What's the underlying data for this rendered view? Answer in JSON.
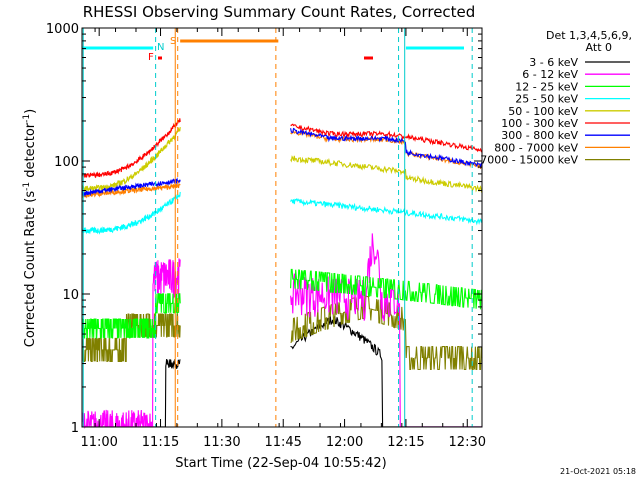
{
  "chart_data": {
    "type": "line",
    "title": "RHESSI Observing Summary Count Rates, Corrected",
    "xlabel": "Start Time (22-Sep-04 10:55:42)",
    "ylabel": "Corrected Count Rate (s",
    "ylabel_sup1": "-1",
    "ylabel_mid": " detector",
    "ylabel_sup2": "-1",
    "ylabel_end": ")",
    "footer": "21-Oct-2021 05:18",
    "y_scale": "log",
    "ylim": [
      1,
      1000
    ],
    "xlim_minutes": [
      10.93,
      12.56
    ],
    "y_ticks": [
      {
        "v": 1000,
        "label": "1000"
      },
      {
        "v": 100,
        "label": "100"
      },
      {
        "v": 10,
        "label": "10"
      },
      {
        "v": 1,
        "label": "1"
      }
    ],
    "x_ticks": [
      {
        "h": 11.0,
        "label": "11:00"
      },
      {
        "h": 11.25,
        "label": "11:15"
      },
      {
        "h": 11.5,
        "label": "11:30"
      },
      {
        "h": 11.75,
        "label": "11:45"
      },
      {
        "h": 12.0,
        "label": "12:00"
      },
      {
        "h": 12.25,
        "label": "12:15"
      },
      {
        "h": 12.5,
        "label": "12:30"
      }
    ],
    "legend_title_1": "Det 1,3,4,5,6,9,",
    "legend_title_2": "Att 0",
    "series": [
      {
        "name": "3 - 6 keV",
        "color": "#000000"
      },
      {
        "name": "6 - 12 keV",
        "color": "#ff00ff"
      },
      {
        "name": "12 - 25 keV",
        "color": "#00ff00"
      },
      {
        "name": "25 - 50 keV",
        "color": "#00ffff"
      },
      {
        "name": "50 - 100 keV",
        "color": "#cccc00"
      },
      {
        "name": "100 - 300 keV",
        "color": "#ff0000"
      },
      {
        "name": "300 - 800 keV",
        "color": "#0000ff"
      },
      {
        "name": "800 - 7000 keV",
        "color": "#ff8000"
      },
      {
        "name": "7000 - 15000 keV",
        "color": "#808000"
      }
    ],
    "flag_labels": {
      "F": "F",
      "N": "N",
      "S": "S"
    },
    "segments": [
      {
        "start_h": 10.93,
        "end_h": 11.33
      },
      {
        "start_h": 11.78,
        "end_h": 12.56
      }
    ],
    "night_markers_h": [
      11.23,
      12.22,
      12.52
    ],
    "saa_markers_h": [
      11.32,
      11.72
    ]
  }
}
